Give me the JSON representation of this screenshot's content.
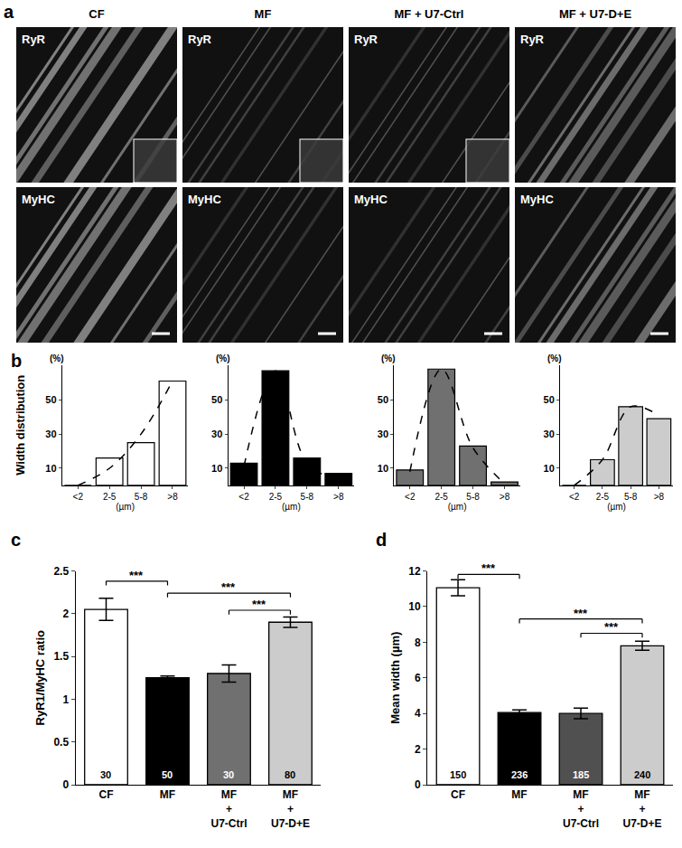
{
  "panel_a": {
    "panel": "a",
    "columns": [
      "CF",
      "MF",
      "MF + U7-Ctrl",
      "MF + U7-D+E"
    ],
    "rows": [
      "RyR",
      "MyHC"
    ]
  },
  "chart_data": [
    {
      "type": "bar",
      "panel": "b",
      "side_label": "Width distribution",
      "xlabel": "(µm)",
      "ylabel": "(%)",
      "categories": [
        "<2",
        "2-5",
        "5-8",
        ">8"
      ],
      "values": [
        0,
        16,
        25,
        61
      ],
      "color": "#ffffff",
      "fit": {
        "type": "line",
        "line_style": "dashed",
        "color": "#000000",
        "values": [
          0,
          10,
          30,
          61
        ]
      },
      "ylim": [
        0,
        70
      ],
      "yticks": [
        10,
        30,
        50
      ],
      "grid": false
    },
    {
      "type": "bar",
      "panel": "b",
      "xlabel": "(µm)",
      "ylabel": "(%)",
      "categories": [
        "<2",
        "2-5",
        "5-8",
        ">8"
      ],
      "values": [
        13,
        67,
        16,
        7
      ],
      "color": "#000000",
      "fit": {
        "type": "line",
        "line_style": "dashed",
        "color": "#000000",
        "values": [
          11,
          67,
          13,
          3
        ]
      },
      "ylim": [
        0,
        70
      ],
      "yticks": [
        10,
        30,
        50
      ],
      "grid": false
    },
    {
      "type": "bar",
      "panel": "b",
      "xlabel": "(µm)",
      "ylabel": "(%)",
      "categories": [
        "<2",
        "2-5",
        "5-8",
        ">8"
      ],
      "values": [
        9,
        68,
        23,
        2
      ],
      "color": "#707070",
      "fit": {
        "type": "line",
        "line_style": "dashed",
        "color": "#000000",
        "values": [
          8,
          68,
          22,
          1
        ]
      },
      "ylim": [
        0,
        70
      ],
      "yticks": [
        10,
        30,
        50
      ],
      "grid": false
    },
    {
      "type": "bar",
      "panel": "b",
      "xlabel": "(µm)",
      "ylabel": "(%)",
      "categories": [
        "<2",
        "2-5",
        "5-8",
        ">8"
      ],
      "values": [
        0,
        15,
        46,
        39
      ],
      "color": "#cccccc",
      "fit": {
        "type": "line",
        "line_style": "dashed",
        "color": "#000000",
        "values": [
          0,
          15,
          46,
          41
        ]
      },
      "ylim": [
        0,
        70
      ],
      "yticks": [
        10,
        30,
        50
      ],
      "grid": false
    },
    {
      "type": "bar",
      "panel": "c",
      "ylabel": "RyR1/MyHC ratio",
      "categories": [
        "CF",
        "MF",
        "MF\n+\nU7-Ctrl",
        "MF\n+\nU7-D+E"
      ],
      "values": [
        2.05,
        1.25,
        1.3,
        1.9
      ],
      "errors": [
        0.13,
        0.02,
        0.1,
        0.06
      ],
      "n": [
        30,
        50,
        30,
        80
      ],
      "colors": [
        "#ffffff",
        "#000000",
        "#707070",
        "#cccccc"
      ],
      "ylim": [
        0,
        2.5
      ],
      "yticks": [
        0,
        0.5,
        1,
        1.5,
        2,
        2.5
      ],
      "grid": false,
      "significance": [
        {
          "from": 0,
          "to": 1,
          "y": 2.38,
          "label": "***"
        },
        {
          "from": 1,
          "to": 3,
          "y": 2.24,
          "label": "***"
        },
        {
          "from": 2,
          "to": 3,
          "y": 2.04,
          "label": "***"
        }
      ]
    },
    {
      "type": "bar",
      "panel": "d",
      "ylabel": "Mean width (µm)",
      "categories": [
        "CF",
        "MF",
        "MF\n+\nU7-Ctrl",
        "MF\n+\nU7-D+E"
      ],
      "values": [
        11.05,
        4.05,
        4.0,
        7.8
      ],
      "errors": [
        0.45,
        0.15,
        0.3,
        0.25
      ],
      "n": [
        150,
        236,
        185,
        240
      ],
      "colors": [
        "#ffffff",
        "#000000",
        "#505050",
        "#cccccc"
      ],
      "ylim": [
        0,
        12
      ],
      "yticks": [
        0,
        2,
        4,
        6,
        8,
        10,
        12
      ],
      "grid": false,
      "significance": [
        {
          "from": 0,
          "to": 1,
          "y": 11.8,
          "label": "***"
        },
        {
          "from": 1,
          "to": 3,
          "y": 9.3,
          "label": "***"
        },
        {
          "from": 2,
          "to": 3,
          "y": 8.5,
          "label": "***"
        }
      ]
    }
  ]
}
